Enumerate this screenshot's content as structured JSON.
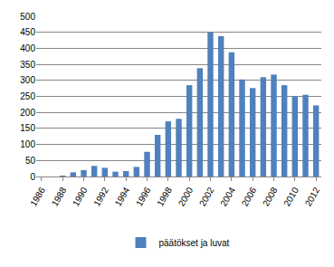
{
  "chart_data": {
    "type": "bar",
    "categories": [
      "1986",
      null,
      "1988",
      null,
      "1990",
      null,
      "1992",
      null,
      "1994",
      null,
      "1996",
      null,
      "1998",
      null,
      "2000",
      null,
      "2002",
      null,
      "2004",
      null,
      "2006",
      null,
      "2008",
      null,
      "2010",
      null,
      "2012"
    ],
    "series": [
      {
        "name": "päätökset ja luvat",
        "color": "#4f81bd",
        "values": [
          0,
          0,
          1,
          13,
          20,
          33,
          27,
          15,
          17,
          30,
          77,
          130,
          172,
          180,
          285,
          338,
          450,
          438,
          388,
          303,
          276,
          310,
          318,
          285,
          250,
          255,
          222
        ]
      }
    ],
    "ylim": [
      0,
      500
    ],
    "yticks": [
      0,
      50,
      100,
      150,
      200,
      250,
      300,
      350,
      400,
      450,
      500
    ],
    "grid": true,
    "legend": "bottom"
  }
}
